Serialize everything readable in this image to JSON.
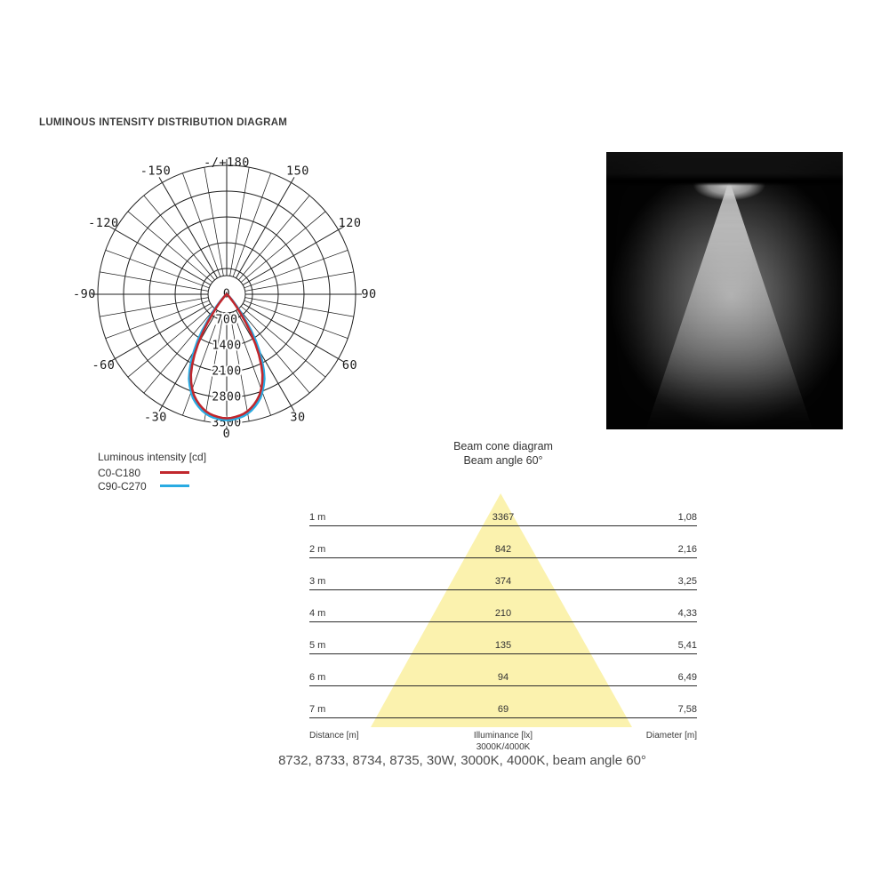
{
  "title": "LUMINOUS INTENSITY DISTRIBUTION DIAGRAM",
  "legend": {
    "title": "Luminous intensity [cd]",
    "items": [
      {
        "label": "C0-C180",
        "color": "#c1272d"
      },
      {
        "label": "C90-C270",
        "color": "#29abe2"
      }
    ]
  },
  "beam_cone": {
    "title": "Beam cone diagram",
    "subtitle": "Beam angle 60°",
    "cone_color": "#fbf2ae",
    "rows": [
      {
        "distance": "1 m",
        "illuminance": "3367",
        "diameter": "1,08"
      },
      {
        "distance": "2 m",
        "illuminance": "842",
        "diameter": "2,16"
      },
      {
        "distance": "3 m",
        "illuminance": "374",
        "diameter": "3,25"
      },
      {
        "distance": "4 m",
        "illuminance": "210",
        "diameter": "4,33"
      },
      {
        "distance": "5 m",
        "illuminance": "135",
        "diameter": "5,41"
      },
      {
        "distance": "6 m",
        "illuminance": "94",
        "diameter": "6,49"
      },
      {
        "distance": "7 m",
        "illuminance": "69",
        "diameter": "7,58"
      }
    ],
    "footer": {
      "left": "Distance [m]",
      "center_line1": "Illuminance [lx]",
      "center_line2": "3000K/4000K",
      "right": "Diameter [m]"
    }
  },
  "caption": "8732, 8733, 8734, 8735, 30W, 3000K, 4000K, beam angle 60°",
  "chart_data": [
    {
      "type": "polar-intensity",
      "title": "LUMINOUS INTENSITY DISTRIBUTION DIAGRAM",
      "unit": "cd",
      "radial_ticks": [
        0,
        700,
        1400,
        2100,
        2800,
        3500
      ],
      "radial_max": 3500,
      "angle_step_minor_deg": 10,
      "angle_step_major_deg": 30,
      "angle_labels": [
        {
          "deg": 180,
          "label": "-/+180"
        },
        {
          "deg": 150,
          "label": "150"
        },
        {
          "deg": -150,
          "label": "-150"
        },
        {
          "deg": 120,
          "label": "120"
        },
        {
          "deg": -120,
          "label": "-120"
        },
        {
          "deg": 90,
          "label": "90"
        },
        {
          "deg": -90,
          "label": "-90"
        },
        {
          "deg": 60,
          "label": "60"
        },
        {
          "deg": -60,
          "label": "-60"
        },
        {
          "deg": 30,
          "label": "30"
        },
        {
          "deg": -30,
          "label": "-30"
        },
        {
          "deg": 0,
          "label": "0"
        }
      ],
      "theta_deg": [
        0,
        2,
        5,
        8,
        10,
        12,
        15,
        18,
        21,
        24,
        27,
        30,
        33,
        36,
        39,
        42,
        45,
        50,
        55,
        60,
        70,
        80,
        90
      ],
      "series": [
        {
          "name": "C90-C270",
          "color": "#29abe2",
          "peak_cd": 3417,
          "cd": [
            3417,
            3410,
            3383,
            3336,
            3287,
            3225,
            3110,
            2962,
            2756,
            2517,
            2185,
            1770,
            1358,
            854,
            508,
            279,
            148,
            66,
            35,
            20,
            9,
            3,
            0
          ]
        },
        {
          "name": "C0-C180",
          "color": "#c1272d",
          "peak_cd": 3367,
          "cd": [
            3367,
            3360,
            3330,
            3280,
            3230,
            3160,
            3040,
            2880,
            2670,
            2390,
            2020,
            1560,
            1060,
            640,
            350,
            180,
            95,
            45,
            25,
            15,
            6,
            2,
            0
          ]
        }
      ]
    },
    {
      "type": "beam-cone",
      "title": "Beam cone diagram",
      "beam_angle_deg": 60,
      "distance_m": [
        1,
        2,
        3,
        4,
        5,
        6,
        7
      ],
      "illuminance_lx": [
        3367,
        842,
        374,
        210,
        135,
        94,
        69
      ],
      "diameter_m": [
        1.08,
        2.16,
        3.25,
        4.33,
        5.41,
        6.49,
        7.58
      ]
    }
  ]
}
